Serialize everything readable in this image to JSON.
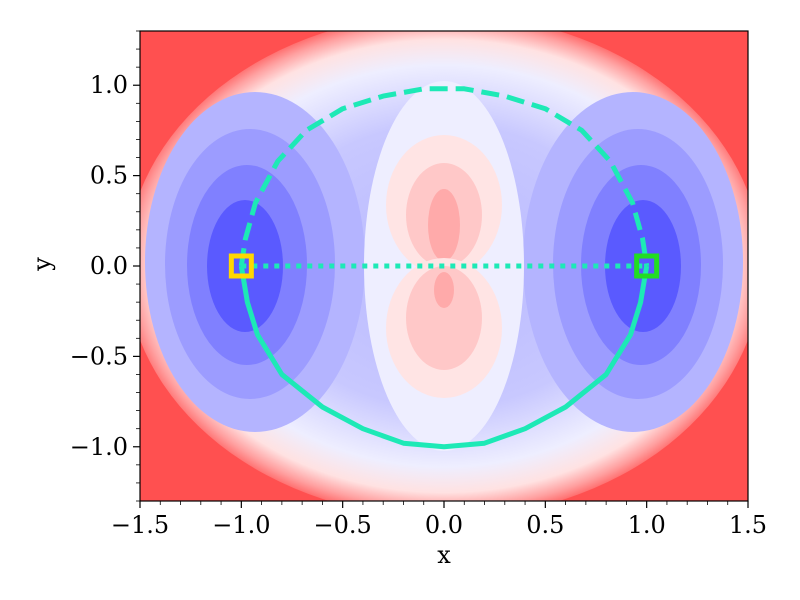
{
  "chart_data": {
    "type": "contour",
    "title": "",
    "xlabel": "x",
    "ylabel": "y",
    "xlim": [
      -1.5,
      1.5
    ],
    "ylim": [
      -1.3,
      1.3
    ],
    "x_ticks": [
      -1.5,
      -1.0,
      -0.5,
      0.0,
      0.5,
      1.0,
      1.5
    ],
    "x_tick_labels": [
      "−1.5",
      "−1.0",
      "−0.5",
      "0.0",
      "0.5",
      "1.0",
      "1.5"
    ],
    "y_ticks": [
      -1.0,
      -0.5,
      0.0,
      0.5,
      1.0
    ],
    "y_tick_labels": [
      "−1.0",
      "−0.5",
      "0.0",
      "0.5",
      "1.0"
    ],
    "colormap": "bwr",
    "colors": {
      "path": "#1de9b6",
      "start_marker_face": "#ffd700",
      "start_marker_edge": "#ffd700",
      "end_marker_face": "#00e000",
      "end_marker_edge": "#22dd22",
      "high": "#ff5050",
      "low": "#4040ff"
    },
    "markers": [
      {
        "name": "start",
        "x": -1.0,
        "y": 0.0,
        "shape": "square"
      },
      {
        "name": "end",
        "x": 1.0,
        "y": 0.0,
        "shape": "square"
      }
    ],
    "paths": [
      {
        "style": "dotted",
        "x": [
          -1.0,
          1.0
        ],
        "y": [
          0.0,
          0.0
        ]
      },
      {
        "style": "dashed",
        "x": [
          -1.0,
          -0.98,
          -0.93,
          -0.82,
          -0.68,
          -0.5,
          -0.3,
          -0.1,
          0.0,
          0.1,
          0.3,
          0.5,
          0.68,
          0.82,
          0.93,
          0.98,
          1.0
        ],
        "y": [
          0.0,
          0.15,
          0.35,
          0.58,
          0.75,
          0.87,
          0.94,
          0.98,
          0.98,
          0.98,
          0.94,
          0.87,
          0.75,
          0.58,
          0.35,
          0.15,
          0.0
        ]
      },
      {
        "style": "solid",
        "x": [
          -1.0,
          -0.97,
          -0.92,
          -0.8,
          -0.6,
          -0.4,
          -0.2,
          0.0,
          0.2,
          0.4,
          0.6,
          0.8,
          0.92,
          0.97,
          1.0
        ],
        "y": [
          0.0,
          -0.2,
          -0.38,
          -0.6,
          -0.78,
          -0.9,
          -0.98,
          -1.0,
          -0.98,
          -0.9,
          -0.78,
          -0.6,
          -0.38,
          -0.2,
          0.0
        ]
      }
    ]
  }
}
